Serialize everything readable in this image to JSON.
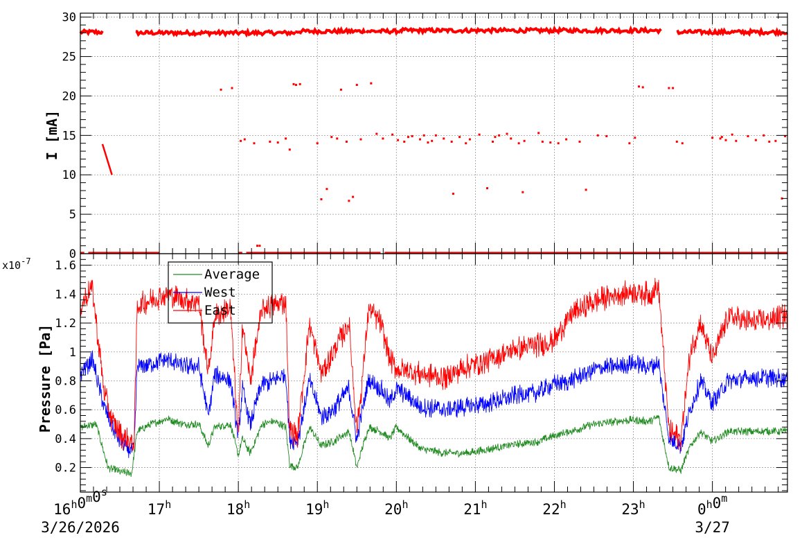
{
  "colors": {
    "average": "#228b22",
    "west": "#0000ff",
    "east": "#ff0000",
    "current": "#ff0000",
    "grid": "#9a9a9a",
    "axis": "#000000"
  },
  "chart_data": [
    {
      "type": "scatter",
      "name": "current-panel",
      "title": "",
      "xlabel": "",
      "ylabel": "I [mA]",
      "x_unit": "hours after 2026-03-26 16:00",
      "xlim": [
        0,
        8.95
      ],
      "ylim": [
        0,
        30.5
      ],
      "yticks": [
        0,
        5,
        10,
        15,
        20,
        25,
        30
      ],
      "ytick_labels": [
        "0",
        "5",
        "10",
        "15",
        "20",
        "25",
        "30"
      ],
      "grid": true,
      "series": [
        {
          "color_key": "current",
          "segments": [
            {
              "x0": 0.0,
              "x1": 0.28,
              "y": 28.1
            },
            {
              "x0": 0.7,
              "x1": 2.72,
              "y": 28.0
            },
            {
              "x0": 2.72,
              "x1": 3.6,
              "y": 28.2
            },
            {
              "x0": 3.62,
              "x1": 4.05,
              "y": 28.2
            },
            {
              "x0": 4.05,
              "x1": 7.35,
              "y": 28.3
            },
            {
              "x0": 7.55,
              "x1": 7.6,
              "y": 28.0
            },
            {
              "x0": 7.6,
              "x1": 8.95,
              "y": 28.1
            }
          ],
          "zero_segments": [
            {
              "x0": 0.0,
              "x1": 0.05
            },
            {
              "x0": 0.1,
              "x1": 1.0
            },
            {
              "x0": 2.0,
              "x1": 2.05
            },
            {
              "x0": 2.1,
              "x1": 3.8
            },
            {
              "x0": 3.85,
              "x1": 4.9
            },
            {
              "x0": 4.9,
              "x1": 8.95
            }
          ],
          "decay": {
            "x0": 0.28,
            "x1": 0.4,
            "y0": 13.9,
            "y1": 10.0
          },
          "scatter_x": [
            1.78,
            1.92,
            2.03,
            2.08,
            2.2,
            2.24,
            2.27,
            2.4,
            2.5,
            2.6,
            2.65,
            2.7,
            2.73,
            2.78,
            3.0,
            3.05,
            3.12,
            3.18,
            3.25,
            3.3,
            3.37,
            3.4,
            3.45,
            3.5,
            3.55,
            3.68,
            3.75,
            3.83,
            3.95,
            4.02,
            4.1,
            4.15,
            4.2,
            4.3,
            4.35,
            4.4,
            4.45,
            4.5,
            4.6,
            4.7,
            4.72,
            4.8,
            4.88,
            4.93,
            5.05,
            5.15,
            5.22,
            5.25,
            5.3,
            5.4,
            5.45,
            5.55,
            5.6,
            5.62,
            5.8,
            5.85,
            5.95,
            6.05,
            6.15,
            6.32,
            6.4,
            6.55,
            6.66,
            6.95,
            7.02,
            7.07,
            7.12,
            7.45,
            7.5,
            7.55,
            7.62,
            8.0,
            8.1,
            8.12,
            8.17,
            8.25,
            8.3,
            8.45,
            8.55,
            8.65,
            8.72,
            8.8,
            8.88,
            8.92
          ],
          "scatter_y": [
            20.8,
            21.0,
            14.3,
            14.5,
            14.0,
            1.0,
            1.0,
            14.2,
            14.1,
            14.6,
            13.2,
            21.5,
            21.4,
            21.5,
            14.0,
            6.9,
            8.2,
            14.8,
            14.6,
            20.8,
            14.2,
            6.7,
            7.2,
            21.4,
            14.5,
            21.6,
            15.2,
            14.6,
            15.1,
            14.4,
            14.2,
            14.8,
            14.9,
            14.5,
            15.0,
            14.1,
            14.3,
            15.0,
            14.6,
            14.2,
            7.6,
            14.8,
            14.0,
            14.5,
            15.1,
            8.3,
            14.2,
            14.8,
            15.0,
            15.2,
            14.6,
            14.0,
            7.8,
            14.3,
            15.3,
            14.2,
            14.1,
            14.0,
            14.5,
            14.2,
            8.1,
            15.0,
            14.9,
            14.0,
            14.7,
            21.2,
            21.1,
            21.0,
            21.0,
            14.2,
            14.0,
            14.7,
            14.6,
            14.8,
            14.4,
            15.1,
            14.3,
            14.9,
            14.4,
            15.0,
            14.2,
            14.3,
            7.0,
            14.9
          ]
        }
      ]
    },
    {
      "type": "line",
      "name": "pressure-panel",
      "title": "",
      "xlabel": "",
      "ylabel": "Pressure [Pa]",
      "y_exponent_label": "x10",
      "y_exponent_power": "-7",
      "x_unit": "hours after 2026-03-26 16:00",
      "xlim": [
        0,
        8.95
      ],
      "ylim": [
        0.03,
        1.68
      ],
      "yticks": [
        0.2,
        0.4,
        0.6,
        0.8,
        1.0,
        1.2,
        1.4,
        1.6
      ],
      "ytick_labels": [
        "0.2",
        "0.4",
        "0.6",
        "0.8",
        "1",
        "1.2",
        "1.4",
        "1.6"
      ],
      "grid": true,
      "legend_position": "top-left",
      "series": [
        {
          "name": "Average",
          "color_key": "average",
          "noise": 0.06,
          "x": [
            0.0,
            0.2,
            0.35,
            0.5,
            0.65,
            0.72,
            0.9,
            1.1,
            1.3,
            1.5,
            1.62,
            1.7,
            1.9,
            2.0,
            2.05,
            2.15,
            2.3,
            2.45,
            2.6,
            2.65,
            2.75,
            2.9,
            3.05,
            3.2,
            3.4,
            3.5,
            3.55,
            3.65,
            3.8,
            3.92,
            4.0,
            4.3,
            4.6,
            4.9,
            5.2,
            5.5,
            5.8,
            6.0,
            6.2,
            6.5,
            6.8,
            7.0,
            7.2,
            7.32,
            7.45,
            7.6,
            7.72,
            7.85,
            8.0,
            8.2,
            8.5,
            8.95
          ],
          "y": [
            0.48,
            0.5,
            0.2,
            0.17,
            0.16,
            0.45,
            0.5,
            0.54,
            0.5,
            0.5,
            0.35,
            0.48,
            0.5,
            0.28,
            0.4,
            0.3,
            0.5,
            0.52,
            0.48,
            0.22,
            0.2,
            0.48,
            0.35,
            0.38,
            0.45,
            0.2,
            0.3,
            0.48,
            0.45,
            0.4,
            0.48,
            0.33,
            0.3,
            0.3,
            0.33,
            0.36,
            0.38,
            0.42,
            0.45,
            0.5,
            0.52,
            0.53,
            0.52,
            0.55,
            0.2,
            0.18,
            0.35,
            0.45,
            0.38,
            0.45,
            0.45,
            0.45
          ]
        },
        {
          "name": "West",
          "color_key": "west",
          "noise": 0.14,
          "x": [
            0.0,
            0.15,
            0.3,
            0.42,
            0.55,
            0.68,
            0.72,
            0.9,
            1.1,
            1.3,
            1.5,
            1.62,
            1.7,
            1.9,
            2.0,
            2.05,
            2.15,
            2.3,
            2.45,
            2.6,
            2.65,
            2.75,
            2.9,
            3.05,
            3.2,
            3.4,
            3.5,
            3.55,
            3.65,
            3.8,
            3.92,
            4.0,
            4.3,
            4.6,
            4.9,
            5.2,
            5.5,
            5.8,
            6.0,
            6.2,
            6.5,
            6.8,
            7.0,
            7.2,
            7.32,
            7.45,
            7.6,
            7.72,
            7.85,
            8.0,
            8.2,
            8.5,
            8.95
          ],
          "y": [
            0.85,
            0.95,
            0.62,
            0.45,
            0.35,
            0.32,
            0.9,
            0.92,
            0.95,
            0.9,
            0.9,
            0.55,
            0.85,
            0.8,
            0.4,
            0.75,
            0.5,
            0.78,
            0.8,
            0.85,
            0.4,
            0.38,
            0.8,
            0.55,
            0.6,
            0.75,
            0.38,
            0.55,
            0.8,
            0.75,
            0.65,
            0.75,
            0.62,
            0.6,
            0.62,
            0.65,
            0.7,
            0.72,
            0.78,
            0.8,
            0.88,
            0.9,
            0.92,
            0.9,
            0.92,
            0.4,
            0.35,
            0.6,
            0.8,
            0.65,
            0.8,
            0.82,
            0.82
          ]
        },
        {
          "name": "East",
          "color_key": "east",
          "noise": 0.18,
          "x": [
            0.0,
            0.15,
            0.3,
            0.42,
            0.55,
            0.68,
            0.72,
            0.9,
            1.1,
            1.3,
            1.5,
            1.62,
            1.7,
            1.9,
            2.0,
            2.05,
            2.15,
            2.3,
            2.45,
            2.6,
            2.65,
            2.75,
            2.9,
            3.05,
            3.2,
            3.4,
            3.5,
            3.55,
            3.65,
            3.8,
            3.92,
            4.0,
            4.3,
            4.6,
            4.9,
            5.2,
            5.5,
            5.8,
            6.0,
            6.2,
            6.5,
            6.8,
            7.0,
            7.2,
            7.32,
            7.45,
            7.6,
            7.72,
            7.85,
            8.0,
            8.2,
            8.5,
            8.95
          ],
          "y": [
            1.32,
            1.45,
            0.72,
            0.5,
            0.4,
            0.37,
            1.32,
            1.36,
            1.4,
            1.36,
            1.35,
            0.85,
            1.25,
            1.3,
            0.4,
            1.2,
            0.8,
            1.3,
            1.32,
            1.35,
            0.45,
            0.42,
            1.2,
            0.85,
            1.0,
            1.2,
            0.45,
            0.7,
            1.3,
            1.2,
            0.95,
            0.88,
            0.85,
            0.82,
            0.9,
            0.95,
            1.02,
            1.05,
            1.08,
            1.25,
            1.35,
            1.4,
            1.42,
            1.4,
            1.45,
            0.45,
            0.4,
            1.0,
            1.2,
            0.95,
            1.25,
            1.2,
            1.25
          ]
        }
      ]
    }
  ],
  "time_axis": {
    "ticks": [
      {
        "x": 0,
        "label": "16",
        "sup": "h",
        "label2": "0",
        "sup2": "m",
        "label3": "0",
        "sup3": "s"
      },
      {
        "x": 1,
        "label": "17",
        "sup": "h"
      },
      {
        "x": 2,
        "label": "18",
        "sup": "h"
      },
      {
        "x": 3,
        "label": "19",
        "sup": "h"
      },
      {
        "x": 4,
        "label": "20",
        "sup": "h"
      },
      {
        "x": 5,
        "label": "21",
        "sup": "h"
      },
      {
        "x": 6,
        "label": "22",
        "sup": "h"
      },
      {
        "x": 7,
        "label": "23",
        "sup": "h"
      },
      {
        "x": 8,
        "label": "0",
        "sup": "h",
        "label2": "0",
        "sup2": "m"
      }
    ],
    "dates": [
      {
        "x": 0,
        "label": "3/26/2026"
      },
      {
        "x": 8,
        "label": "3/27"
      }
    ]
  }
}
